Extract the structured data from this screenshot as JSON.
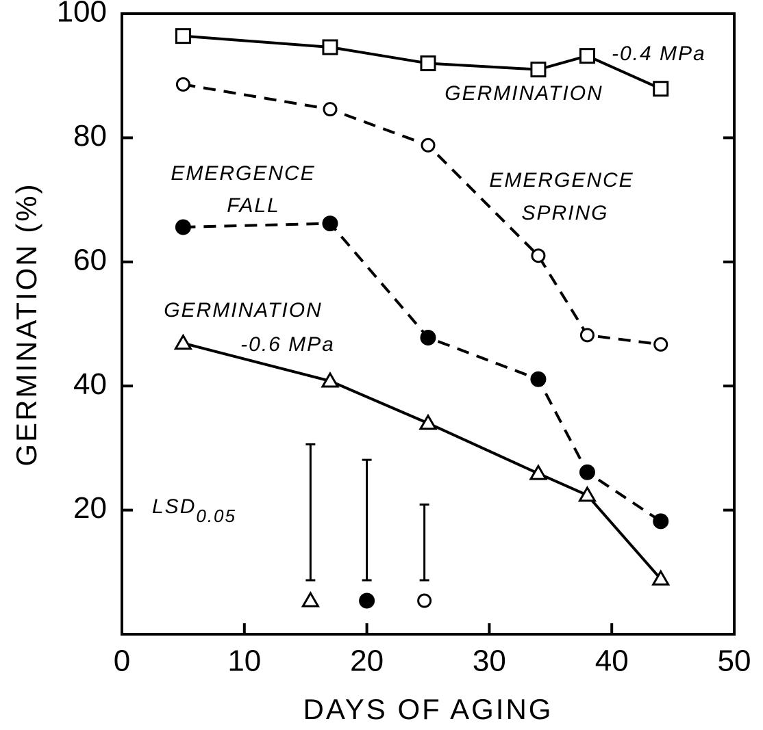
{
  "chart_data": {
    "type": "line",
    "xlabel": "DAYS OF AGING",
    "ylabel": "GERMINATION (%)",
    "xlim": [
      0,
      50
    ],
    "xticks": [
      0,
      10,
      20,
      30,
      40,
      50
    ],
    "ylim": [
      0,
      100
    ],
    "yticks": [
      20,
      40,
      60,
      80,
      100
    ],
    "x": [
      5,
      17,
      25,
      34,
      38,
      44
    ],
    "series": [
      {
        "marker": "square",
        "dash": false,
        "color": "#000",
        "values": [
          96.4,
          94.6,
          92,
          91,
          93.2,
          87.9
        ]
      },
      {
        "marker": "circle",
        "dash": true,
        "color": "#000",
        "values": [
          88.6,
          84.6,
          78.8,
          61,
          48.2,
          46.7
        ]
      },
      {
        "marker": "filled-circle",
        "dash": true,
        "color": "#000",
        "values": [
          65.6,
          66.2,
          47.8,
          41.1,
          26.1,
          18.2
        ]
      },
      {
        "marker": "triangle",
        "dash": false,
        "color": "#000",
        "values": [
          46.9,
          40.8,
          34,
          25.9,
          22.4,
          8.9
        ]
      }
    ],
    "annotations": [
      "-0.4 MPa",
      "GERMINATION",
      "EMERGENCE",
      "SPRING",
      "EMERGENCE",
      "FALL",
      "GERMINATION",
      "-0.6 MPa"
    ],
    "lsd": {
      "label": "LSD",
      "label_sub": "0.05",
      "x": [
        15.4,
        20,
        24.7
      ],
      "low": [
        8.7,
        8.7,
        8.7
      ],
      "high": [
        30.6,
        28.1,
        20.9
      ],
      "marker_y": [
        5.4,
        5.4,
        5.4
      ],
      "marker": [
        "triangle",
        "filled-circle",
        "circle"
      ]
    }
  }
}
